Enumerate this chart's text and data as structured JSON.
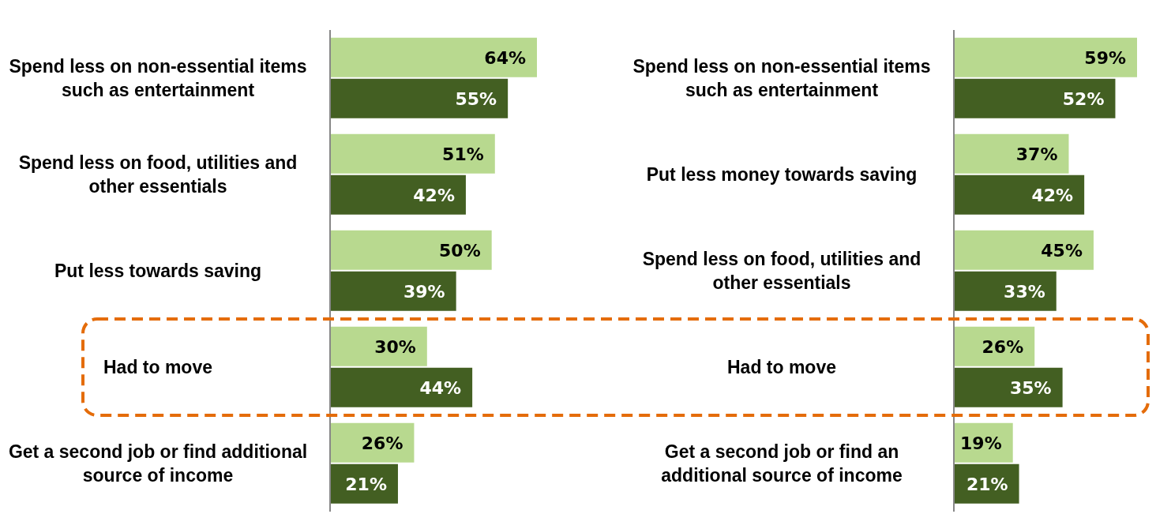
{
  "chart_data": [
    {
      "type": "bar",
      "orientation": "horizontal",
      "categories": [
        "Spend less on non-essential items such as entertainment",
        "Spend less on food, utilities and other essentials",
        "Put less towards saving",
        "Had to move",
        "Get a second job or find additional source of income"
      ],
      "series": [
        {
          "color": "#b8d98f",
          "values": [
            64,
            51,
            50,
            30,
            26
          ],
          "value_labels": [
            "64%",
            "51%",
            "50%",
            "30%",
            "26%"
          ]
        },
        {
          "color": "#435f22",
          "values": [
            55,
            42,
            39,
            44,
            21
          ],
          "value_labels": [
            "55%",
            "42%",
            "39%",
            "44%",
            "21%"
          ]
        }
      ]
    },
    {
      "type": "bar",
      "orientation": "horizontal",
      "categories": [
        "Spend less on non-essential items such as entertainment",
        "Put less money towards saving",
        "Spend less on food, utilities and other essentials",
        "Had to move",
        "Get a second job or find an additional source of income"
      ],
      "series": [
        {
          "color": "#b8d98f",
          "values": [
            59,
            37,
            45,
            26,
            19
          ],
          "value_labels": [
            "59%",
            "37%",
            "45%",
            "26%",
            "19%"
          ]
        },
        {
          "color": "#435f22",
          "values": [
            52,
            42,
            33,
            35,
            21
          ],
          "value_labels": [
            "52%",
            "42%",
            "33%",
            "35%",
            "21%"
          ]
        }
      ]
    }
  ]
}
